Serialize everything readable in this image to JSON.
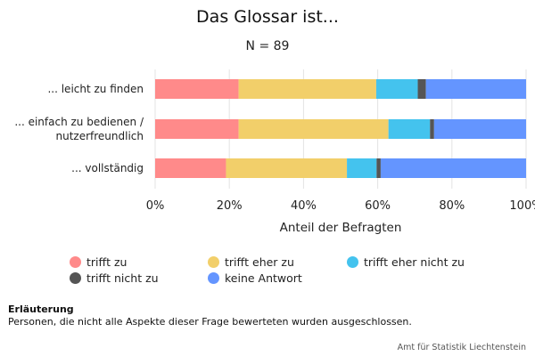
{
  "chart_data": {
    "type": "bar",
    "orientation": "horizontal",
    "stacked": true,
    "title": "Das Glossar ist...",
    "subtitle": "N = 89",
    "xlabel": "Anteil der Befragten",
    "xlim": [
      0,
      100
    ],
    "x_ticks": [
      "0%",
      "20%",
      "40%",
      "60%",
      "80%",
      "100%"
    ],
    "grid": "vertical",
    "legend_position": "bottom",
    "categories": [
      [
        "... leicht zu finden"
      ],
      [
        "... einfach zu bedienen /",
        "nutzerfreundlich"
      ],
      [
        "... vollständig"
      ]
    ],
    "series": [
      {
        "name": "trifft zu",
        "color": "#FF8A8A",
        "values": [
          22.5,
          22.5,
          19.1
        ]
      },
      {
        "name": "trifft eher zu",
        "color": "#F2CF6A",
        "values": [
          37.1,
          40.4,
          32.6
        ]
      },
      {
        "name": "trifft eher nicht zu",
        "color": "#44C3EE",
        "values": [
          11.2,
          11.2,
          8.0
        ]
      },
      {
        "name": "trifft nicht zu",
        "color": "#555555",
        "values": [
          2.2,
          1.1,
          1.1
        ]
      },
      {
        "name": "keine Antwort",
        "color": "#6495FF",
        "values": [
          27.0,
          24.8,
          39.2
        ]
      }
    ]
  },
  "note": {
    "heading": "Erläuterung",
    "text": "Personen, die nicht alle Aspekte dieser Frage bewerteten wurden ausgeschlossen."
  },
  "source": "Amt für Statistik Liechtenstein"
}
